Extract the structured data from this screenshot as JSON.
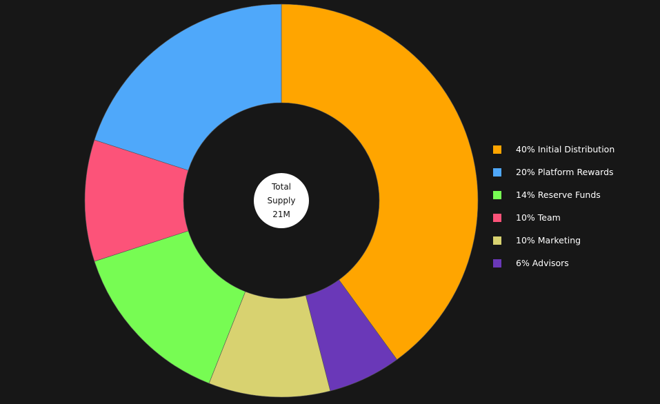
{
  "chart_data": {
    "type": "pie",
    "variant": "donut",
    "center_label": {
      "line1": "Total",
      "line2": "Supply",
      "line3": "21M"
    },
    "slices": [
      {
        "legend_label": "40% Initial Distribution",
        "value": 40,
        "color": "#ffa500"
      },
      {
        "legend_label": "6% Advisors",
        "value": 6,
        "color": "#6a38b8"
      },
      {
        "legend_label": "10% Marketing",
        "value": 10,
        "color": "#d8d270"
      },
      {
        "legend_label": "14% Reserve Funds",
        "value": 14,
        "color": "#77fc53"
      },
      {
        "legend_label": "10% Team",
        "value": 10,
        "color": "#fc5379"
      },
      {
        "legend_label": "20% Platform Rewards",
        "value": 20,
        "color": "#4fa8fa"
      }
    ],
    "legend": {
      "placement": "right",
      "items": [
        {
          "label": "40% Initial Distribution",
          "color": "#ffa500"
        },
        {
          "label": "20% Platform Rewards",
          "color": "#4fa8fa"
        },
        {
          "label": "14% Reserve Funds",
          "color": "#77fc53"
        },
        {
          "label": "10% Team",
          "color": "#fc5379"
        },
        {
          "label": "10% Marketing",
          "color": "#d8d270"
        },
        {
          "label": "6% Advisors",
          "color": "#6a38b8"
        }
      ]
    },
    "background_color": "#171717"
  }
}
